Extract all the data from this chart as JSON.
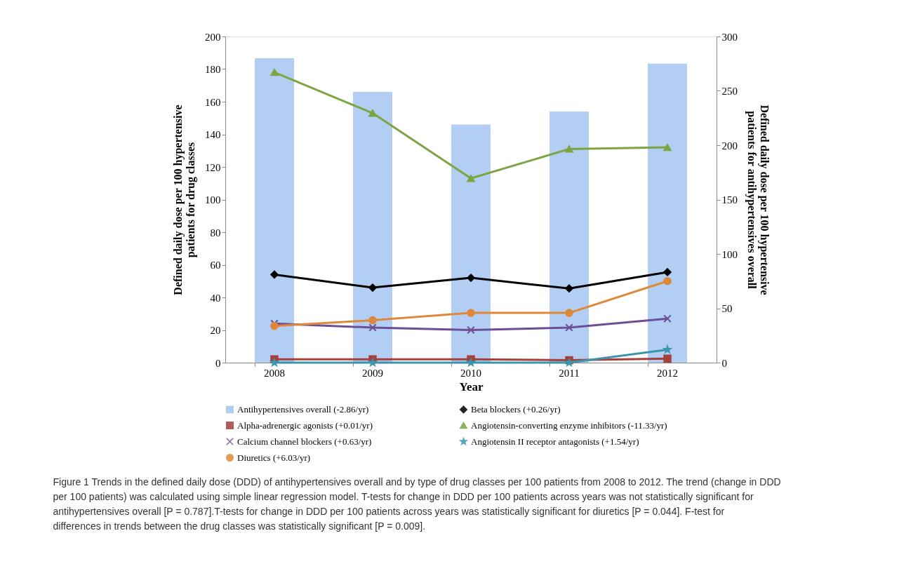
{
  "chart_data": {
    "type": "line",
    "xlabel": "Year",
    "ylabel": "Defined daily dose per 100 hypertensive patients for drug classes",
    "y2label": "Defined daily dose per 100 hypertensive patients for antihypertensives overall",
    "categories": [
      "2008",
      "2009",
      "2010",
      "2011",
      "2012"
    ],
    "ylim": [
      0,
      200
    ],
    "yticks": [
      0,
      20,
      40,
      60,
      80,
      100,
      120,
      140,
      160,
      180,
      200
    ],
    "y2lim": [
      0,
      300
    ],
    "y2ticks": [
      0,
      50,
      100,
      150,
      200,
      250,
      300
    ],
    "grid": false,
    "legend": "bottom",
    "line_style": "solid",
    "series": [
      {
        "name": "Antihypertensives overall (-2.86/yr)",
        "type": "bar",
        "axis": "y2",
        "color": "#a4c6f0",
        "values": [
          280,
          249,
          219,
          231,
          275
        ]
      },
      {
        "name": "Beta blockers (+0.26/yr)",
        "marker": "diamond",
        "color": "#000000",
        "values": [
          54,
          46,
          52,
          45.5,
          55.5
        ]
      },
      {
        "name": "Alpha-adrenergic agonists (+0.01/yr)",
        "marker": "square",
        "color": "#a5403c",
        "values": [
          2,
          2,
          2,
          1.5,
          2.5
        ]
      },
      {
        "name": "Angiotensin-converting enzyme inhibitors (-11.33/yr)",
        "marker": "triangle",
        "color": "#7ea443",
        "values": [
          178,
          153,
          113,
          131,
          132
        ]
      },
      {
        "name": "Calcium channel blockers (+0.63/yr)",
        "marker": "cross",
        "color": "#6d4f97",
        "values": [
          24,
          21.5,
          20,
          21.5,
          27
        ]
      },
      {
        "name": "Angiotensin II receptor antagonists (+1.54/yr)",
        "marker": "star",
        "color": "#3b95ad",
        "values": [
          0,
          0,
          0,
          0,
          8
        ]
      },
      {
        "name": "Diuretics (+6.03/yr)",
        "marker": "circle",
        "color": "#e0883a",
        "values": [
          22.5,
          26,
          30.5,
          30.5,
          50
        ]
      }
    ],
    "annotations": [
      "Figure 1 Trends in the defined daily dose (DDD) of antihypertensives overall and by type of drug classes per 100 patients from 2008 to 2012. The trend (change in DDD per 100 patients) was calculated using simple linear regression model. T-tests for change in DDD per 100 patients across years was not statistically significant for antihypertensives overall [P = 0.787].T-tests for change in DDD per 100 patients across years was statistically significant for diuretics [P = 0.044]. F-test for differences in trends between the drug classes was statistically significant [P = 0.009]."
    ]
  }
}
